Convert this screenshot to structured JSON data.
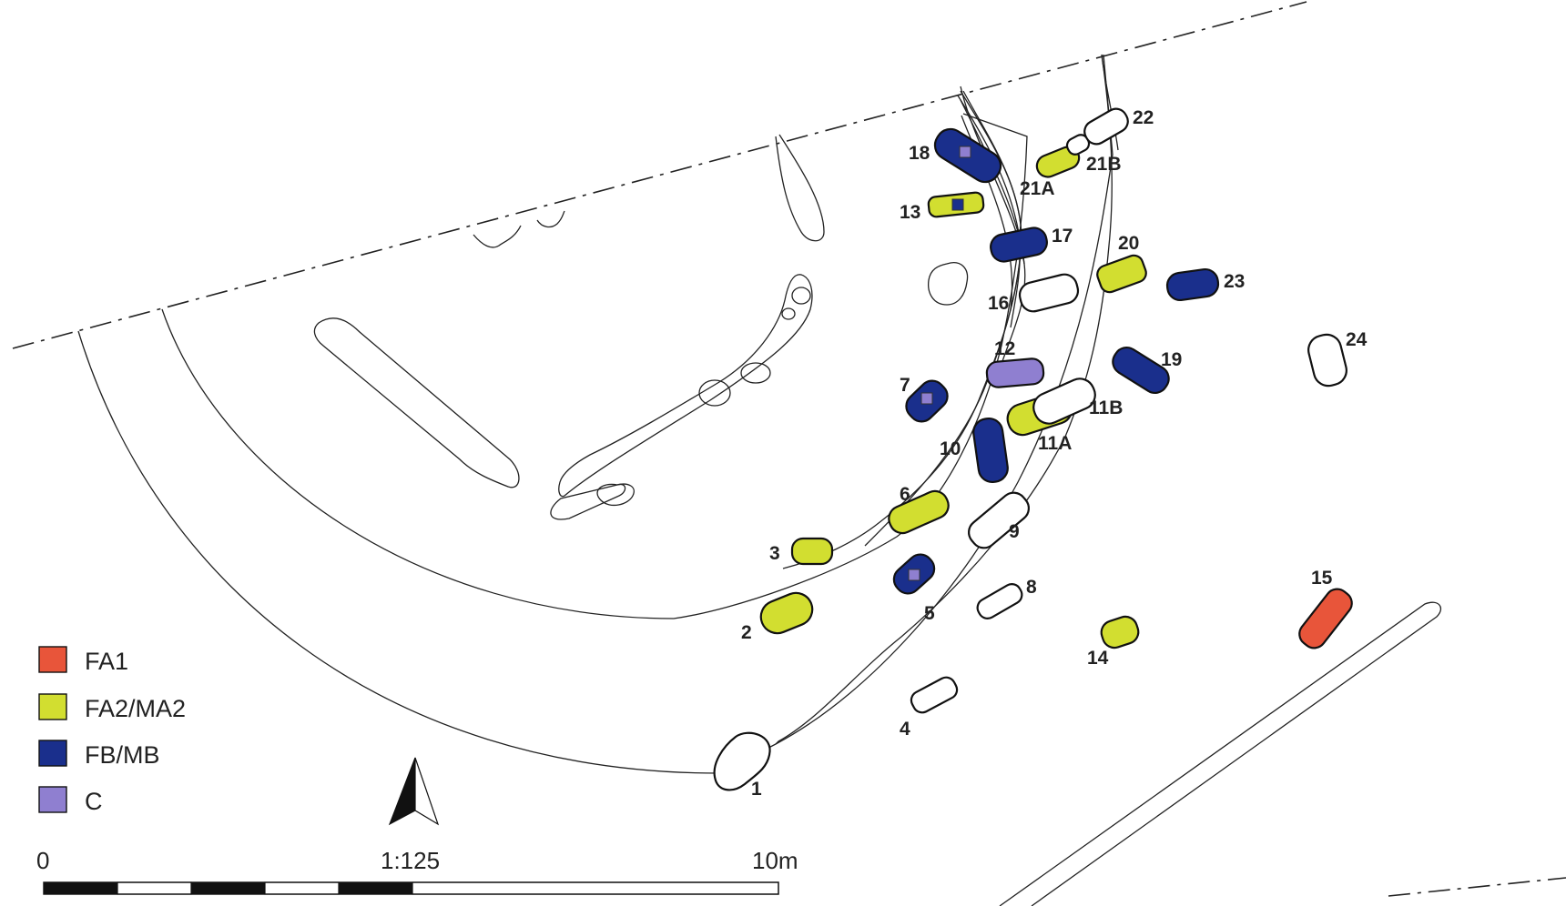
{
  "colors": {
    "FA1": "#e8553a",
    "FA2_MA2": "#d2de30",
    "FB_MB": "#1a2f8c",
    "C": "#8f7fd0",
    "unassigned": "#ffffff"
  },
  "legend": [
    {
      "key": "FA1",
      "label": "FA1"
    },
    {
      "key": "FA2_MA2",
      "label": "FA2/MA2"
    },
    {
      "key": "FB_MB",
      "label": "FB/MB"
    },
    {
      "key": "C",
      "label": "C"
    }
  ],
  "features": [
    {
      "id": "1",
      "label": "1",
      "phase": "unassigned"
    },
    {
      "id": "2",
      "label": "2",
      "phase": "FA2_MA2"
    },
    {
      "id": "3",
      "label": "3",
      "phase": "FA2_MA2"
    },
    {
      "id": "4",
      "label": "4",
      "phase": "unassigned"
    },
    {
      "id": "5",
      "label": "5",
      "phase": "FB_MB"
    },
    {
      "id": "6",
      "label": "6",
      "phase": "FA2_MA2"
    },
    {
      "id": "7",
      "label": "7",
      "phase": "FB_MB"
    },
    {
      "id": "8",
      "label": "8",
      "phase": "unassigned"
    },
    {
      "id": "9",
      "label": "9",
      "phase": "unassigned"
    },
    {
      "id": "10",
      "label": "10",
      "phase": "FB_MB"
    },
    {
      "id": "11A",
      "label": "11A",
      "phase": "FA2_MA2"
    },
    {
      "id": "11B",
      "label": "11B",
      "phase": "unassigned"
    },
    {
      "id": "12",
      "label": "12",
      "phase": "C"
    },
    {
      "id": "13",
      "label": "13",
      "phase": "FA2_MA2"
    },
    {
      "id": "14",
      "label": "14",
      "phase": "FA2_MA2"
    },
    {
      "id": "15",
      "label": "15",
      "phase": "FA1"
    },
    {
      "id": "16",
      "label": "16",
      "phase": "unassigned"
    },
    {
      "id": "17",
      "label": "17",
      "phase": "FB_MB"
    },
    {
      "id": "18",
      "label": "18",
      "phase": "FB_MB"
    },
    {
      "id": "19",
      "label": "19",
      "phase": "FB_MB"
    },
    {
      "id": "20",
      "label": "20",
      "phase": "FA2_MA2"
    },
    {
      "id": "21A",
      "label": "21A",
      "phase": "FA2_MA2"
    },
    {
      "id": "21B",
      "label": "21B",
      "phase": "unassigned"
    },
    {
      "id": "22",
      "label": "22",
      "phase": "unassigned"
    },
    {
      "id": "23",
      "label": "23",
      "phase": "FB_MB"
    },
    {
      "id": "24",
      "label": "24",
      "phase": "unassigned"
    }
  ],
  "scale_bar": {
    "start_label": "0",
    "ratio_label": "1:125",
    "end_label": "10m"
  }
}
